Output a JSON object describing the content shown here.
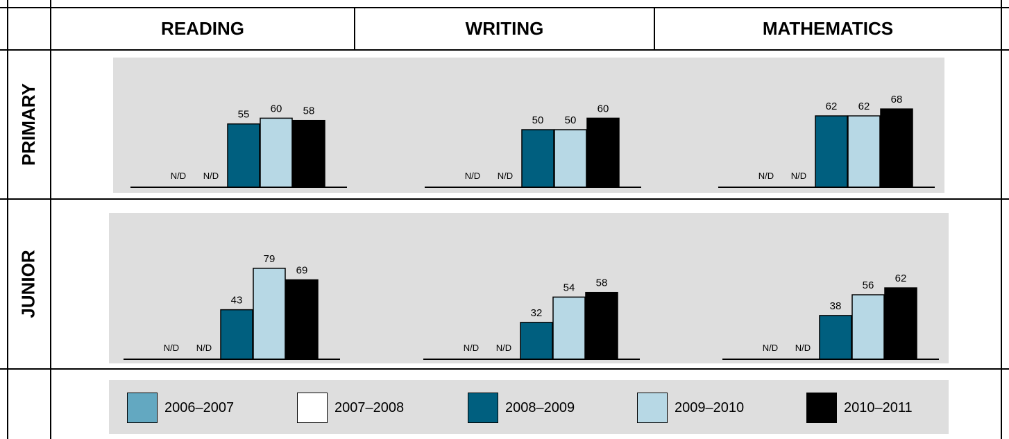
{
  "columns": [
    "READING",
    "WRITING",
    "MATHEMATICS"
  ],
  "rows": [
    "PRIMARY",
    "JUNIOR"
  ],
  "legend": [
    {
      "label": "2006–2007",
      "color": "#63a8c1"
    },
    {
      "label": "2007–2008",
      "color": "#ffffff"
    },
    {
      "label": "2008–2009",
      "color": "#005f7f"
    },
    {
      "label": "2009–2010",
      "color": "#b7d8e5"
    },
    {
      "label": "2010–2011",
      "color": "#000000"
    }
  ],
  "nd_label": "N/D",
  "chart_data": [
    {
      "type": "bar",
      "row": "PRIMARY",
      "column": "READING",
      "categories": [
        "2006–2007",
        "2007–2008",
        "2008–2009",
        "2009–2010",
        "2010–2011"
      ],
      "values": [
        null,
        null,
        55,
        60,
        58
      ],
      "labels": [
        "N/D",
        "N/D",
        "55",
        "60",
        "58"
      ]
    },
    {
      "type": "bar",
      "row": "PRIMARY",
      "column": "WRITING",
      "categories": [
        "2006–2007",
        "2007–2008",
        "2008–2009",
        "2009–2010",
        "2010–2011"
      ],
      "values": [
        null,
        null,
        50,
        50,
        60
      ],
      "labels": [
        "N/D",
        "N/D",
        "50",
        "50",
        "60"
      ]
    },
    {
      "type": "bar",
      "row": "PRIMARY",
      "column": "MATHEMATICS",
      "categories": [
        "2006–2007",
        "2007–2008",
        "2008–2009",
        "2009–2010",
        "2010–2011"
      ],
      "values": [
        null,
        null,
        62,
        62,
        68
      ],
      "labels": [
        "N/D",
        "N/D",
        "62",
        "62",
        "68"
      ]
    },
    {
      "type": "bar",
      "row": "JUNIOR",
      "column": "READING",
      "categories": [
        "2006–2007",
        "2007–2008",
        "2008–2009",
        "2009–2010",
        "2010–2011"
      ],
      "values": [
        null,
        null,
        43,
        79,
        69
      ],
      "labels": [
        "N/D",
        "N/D",
        "43",
        "79",
        "69"
      ]
    },
    {
      "type": "bar",
      "row": "JUNIOR",
      "column": "WRITING",
      "categories": [
        "2006–2007",
        "2007–2008",
        "2008–2009",
        "2009–2010",
        "2010–2011"
      ],
      "values": [
        null,
        null,
        32,
        54,
        58
      ],
      "labels": [
        "N/D",
        "N/D",
        "32",
        "54",
        "58"
      ]
    },
    {
      "type": "bar",
      "row": "JUNIOR",
      "column": "MATHEMATICS",
      "categories": [
        "2006–2007",
        "2007–2008",
        "2008–2009",
        "2009–2010",
        "2010–2011"
      ],
      "values": [
        null,
        null,
        38,
        56,
        62
      ],
      "labels": [
        "N/D",
        "N/D",
        "38",
        "56",
        "62"
      ]
    }
  ]
}
